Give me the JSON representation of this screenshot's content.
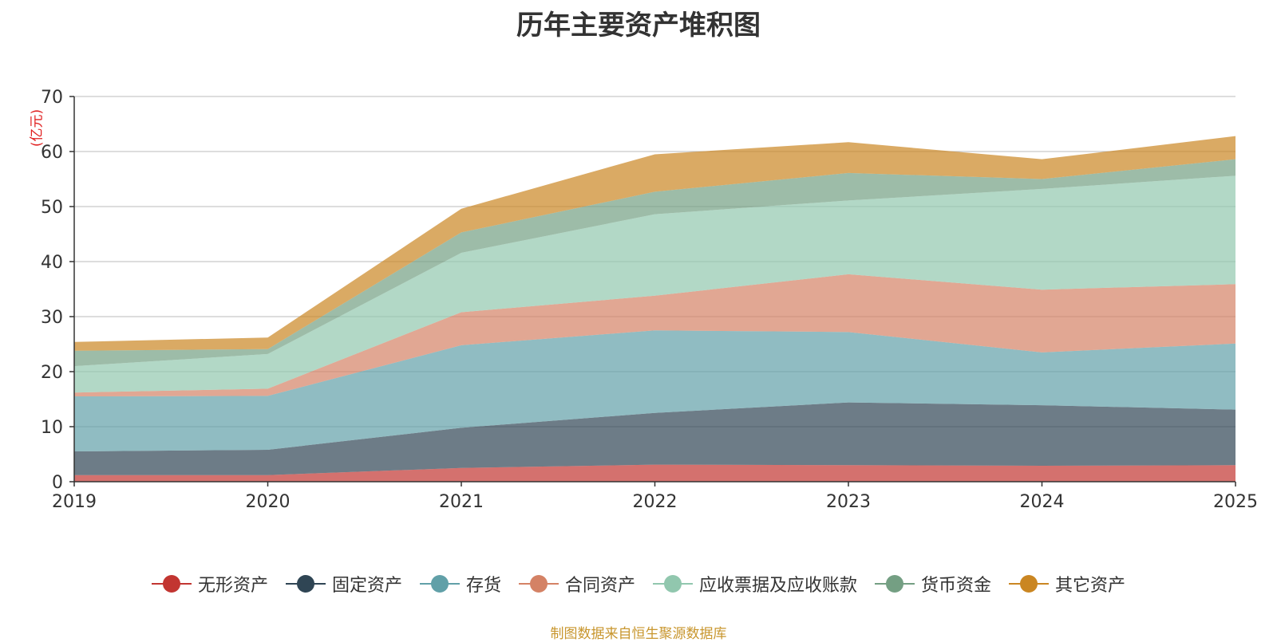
{
  "chart_data": {
    "type": "area",
    "stacked": true,
    "title": "历年主要资产堆积图",
    "ylabel": "(亿元)",
    "categories": [
      "2019",
      "2020",
      "2021",
      "2022",
      "2023",
      "2024",
      "2025"
    ],
    "ylim": [
      0,
      70
    ],
    "yticks": [
      "0",
      "10",
      "20",
      "30",
      "40",
      "50",
      "60",
      "70"
    ],
    "grid": true,
    "legend_position": "bottom",
    "series": [
      {
        "name": "无形资产",
        "color": "#c23531",
        "values": [
          1.2,
          1.2,
          2.5,
          3.1,
          3.0,
          2.9,
          3.0
        ]
      },
      {
        "name": "固定资产",
        "color": "#2f4554",
        "values": [
          4.3,
          4.6,
          7.3,
          9.4,
          11.4,
          11.0,
          10.1
        ]
      },
      {
        "name": "存货",
        "color": "#61a0a8",
        "values": [
          10.0,
          9.8,
          15.0,
          15.0,
          12.8,
          9.6,
          12.0
        ]
      },
      {
        "name": "合同资产",
        "color": "#d48265",
        "values": [
          0.7,
          1.3,
          6.0,
          6.3,
          10.5,
          11.4,
          10.8
        ]
      },
      {
        "name": "应收票据及应收账款",
        "color": "#91c7ae",
        "values": [
          4.8,
          6.3,
          10.8,
          14.8,
          13.4,
          18.3,
          19.7
        ]
      },
      {
        "name": "货币资金",
        "color": "#749f83",
        "values": [
          2.8,
          0.9,
          3.7,
          4.1,
          5.0,
          1.8,
          3.0
        ]
      },
      {
        "name": "其它资产",
        "color": "#ca8622",
        "values": [
          1.6,
          2.1,
          4.3,
          6.8,
          5.6,
          3.6,
          4.2
        ]
      }
    ]
  },
  "source_text": "制图数据来自恒生聚源数据库"
}
